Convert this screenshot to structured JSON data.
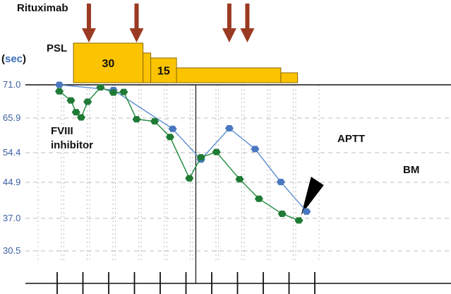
{
  "chart_data": {
    "type": "line",
    "title": "",
    "ylabel_parts": [
      "(",
      "sec",
      ")"
    ],
    "y_ticks": [
      71.0,
      65.9,
      54.4,
      44.9,
      37.0,
      30.5
    ],
    "y_tick_labels": [
      "71.0",
      "65.9",
      "54.4",
      "44.9",
      "37.0",
      "30.5"
    ],
    "ylim_display": [
      30.5,
      71.0
    ],
    "x_tick_count": 11,
    "grid": true,
    "colors": {
      "aptt": "#5b8fd0",
      "aptt_marker": "#4a78c0",
      "fviii": "#1f8a3a",
      "fviii_marker": "#1e7a34",
      "psl": "#fcc400",
      "psl_border": "#8a6a00",
      "arrow": "#9a3a22",
      "grid": "#bdbdbd"
    },
    "series": [
      {
        "name": "APTT",
        "points": [
          {
            "x": 0.0,
            "y": 71.0
          },
          {
            "x": 2.1,
            "y": 70.2
          },
          {
            "x": 4.4,
            "y": 62.3
          },
          {
            "x": 5.5,
            "y": 52.2
          },
          {
            "x": 6.6,
            "y": 62.5
          },
          {
            "x": 7.6,
            "y": 55.6
          },
          {
            "x": 8.6,
            "y": 45.0
          },
          {
            "x": 9.6,
            "y": 38.5
          }
        ]
      },
      {
        "name": "FVIII inhibitor",
        "points": [
          {
            "x": 0.0,
            "y": 70.0
          },
          {
            "x": 0.45,
            "y": 68.6
          },
          {
            "x": 0.65,
            "y": 66.8
          },
          {
            "x": 0.85,
            "y": 66.0
          },
          {
            "x": 1.1,
            "y": 68.4
          },
          {
            "x": 1.6,
            "y": 70.6
          },
          {
            "x": 2.1,
            "y": 69.8
          },
          {
            "x": 2.5,
            "y": 69.9
          },
          {
            "x": 3.0,
            "y": 65.5
          },
          {
            "x": 3.7,
            "y": 64.8
          },
          {
            "x": 4.3,
            "y": 59.6
          },
          {
            "x": 5.05,
            "y": 46.2
          },
          {
            "x": 5.5,
            "y": 52.9
          },
          {
            "x": 6.1,
            "y": 54.6
          },
          {
            "x": 7.0,
            "y": 45.9
          },
          {
            "x": 7.75,
            "y": 41.3
          },
          {
            "x": 8.65,
            "y": 38.0
          },
          {
            "x": 9.3,
            "y": 36.6
          }
        ]
      }
    ],
    "labels": {
      "rituximab": "Rituximab",
      "psl": "PSL",
      "aptt": "APTT",
      "fviii_line1": "FVIII",
      "fviii_line2": "inhibitor",
      "bm": "BM"
    },
    "rituximab_arrows": [
      1.15,
      3.0,
      6.6,
      7.3
    ],
    "psl_blocks": [
      {
        "start": 0.55,
        "end": 3.25,
        "level": 4,
        "label": "30"
      },
      {
        "start": 3.25,
        "end": 3.55,
        "level": 3,
        "label": ""
      },
      {
        "start": 3.55,
        "end": 4.55,
        "level": 2.5,
        "label": "15"
      },
      {
        "start": 4.55,
        "end": 8.6,
        "level": 1.5,
        "label": ""
      },
      {
        "start": 8.6,
        "end": 9.25,
        "level": 1.0,
        "label": ""
      }
    ],
    "bm_marker_x": 9.5,
    "event_line_x": 5.3
  }
}
